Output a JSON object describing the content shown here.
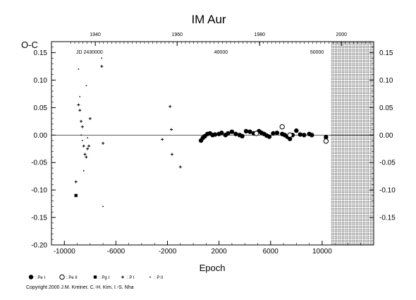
{
  "chart_data": {
    "type": "scatter",
    "title": "IM Aur",
    "xlabel": "Epoch",
    "ylabel": "O-C",
    "xlim": [
      -11000,
      14000
    ],
    "ylim": [
      -0.2,
      0.17
    ],
    "x_ticks": [
      -10000,
      -6000,
      -2000,
      2000,
      6000,
      10000
    ],
    "x_tick_labels": [
      "-10000",
      "-6000",
      "-2000",
      "2000",
      "6000",
      "10000"
    ],
    "y_ticks_left": [
      0.15,
      0.1,
      0.05,
      0.0,
      -0.05,
      -0.1,
      -0.15,
      -0.2
    ],
    "y_tick_labels_left": [
      "0.15",
      "0.10",
      "0.05",
      "0.00",
      "-0.05",
      "-0.10",
      "-0.15",
      "-0.20"
    ],
    "y_ticks_right": [
      0.15,
      0.1,
      0.05,
      0.0,
      -0.05,
      -0.1,
      -0.15
    ],
    "y_tick_labels_right": [
      "0.15",
      "0.10",
      "0.05",
      "0.00",
      "-0.05",
      "-0.10",
      "-0.15"
    ],
    "top_year_ticks": [
      {
        "label": "1940",
        "epoch": -7600
      },
      {
        "label": "1960",
        "epoch": -1250
      },
      {
        "label": "1980",
        "epoch": 5150
      },
      {
        "label": "2000",
        "epoch": 11500
      }
    ],
    "jd_label": "JD 2430000",
    "jd_ticks": [
      {
        "label": "40000",
        "epoch": 2150
      },
      {
        "label": "50000",
        "epoch": 9600
      }
    ],
    "future_hatch_from_epoch": 10700,
    "series": [
      {
        "name": ": Pe I",
        "marker": "filled-circle",
        "points": [
          [
            600,
            -0.01
          ],
          [
            750,
            -0.005
          ],
          [
            900,
            -0.002
          ],
          [
            1100,
            0.002
          ],
          [
            1300,
            0.003
          ],
          [
            1500,
            0.0
          ],
          [
            1700,
            0.001
          ],
          [
            2000,
            0.002
          ],
          [
            2200,
            0.004
          ],
          [
            2500,
            0.0
          ],
          [
            2700,
            0.003
          ],
          [
            3000,
            0.006
          ],
          [
            3300,
            0.002
          ],
          [
            3600,
            0.0
          ],
          [
            3800,
            -0.002
          ],
          [
            4100,
            0.007
          ],
          [
            4400,
            0.006
          ],
          [
            4700,
            0.003
          ],
          [
            5100,
            0.007
          ],
          [
            5300,
            0.004
          ],
          [
            5500,
            0.002
          ],
          [
            5700,
            -0.001
          ],
          [
            5900,
            -0.003
          ],
          [
            6200,
            0.003
          ],
          [
            6500,
            0.004
          ],
          [
            6900,
            0.002
          ],
          [
            7100,
            0.0
          ],
          [
            7300,
            -0.003
          ],
          [
            7500,
            -0.007
          ],
          [
            7700,
            0.0
          ],
          [
            8000,
            0.008
          ],
          [
            8300,
            0.001
          ],
          [
            8600,
            0.0
          ],
          [
            9000,
            0.002
          ],
          [
            9200,
            0.0
          ],
          [
            10300,
            -0.004
          ]
        ]
      },
      {
        "name": ": Pe II",
        "marker": "open-circle",
        "points": [
          [
            4900,
            0.003
          ],
          [
            6900,
            0.015
          ],
          [
            7500,
            0.0
          ],
          [
            10300,
            -0.011
          ]
        ]
      },
      {
        "name": ": Pg I",
        "marker": "filled-square",
        "points": [
          [
            -9100,
            -0.11
          ]
        ]
      },
      {
        "name": ": P I",
        "marker": "plus",
        "points": [
          [
            -9100,
            -0.085
          ],
          [
            -8900,
            0.055
          ],
          [
            -8800,
            0.045
          ],
          [
            -8700,
            0.025
          ],
          [
            -8600,
            0.015
          ],
          [
            -8500,
            -0.02
          ],
          [
            -8400,
            -0.035
          ],
          [
            -8300,
            -0.04
          ],
          [
            -8200,
            -0.025
          ],
          [
            -8100,
            -0.02
          ],
          [
            -8000,
            0.03
          ],
          [
            -7100,
            0.125
          ],
          [
            -7000,
            -0.015
          ],
          [
            -2400,
            -0.008
          ],
          [
            -1800,
            0.052
          ],
          [
            -1700,
            0.01
          ],
          [
            -1650,
            -0.035
          ],
          [
            -1000,
            -0.058
          ]
        ]
      },
      {
        "name": ": P II",
        "marker": "dot",
        "points": [
          [
            -8900,
            0.12
          ],
          [
            -8800,
            0.07
          ],
          [
            -8700,
            0.0
          ],
          [
            -8600,
            -0.01
          ],
          [
            -8500,
            -0.065
          ],
          [
            -8300,
            0.09
          ],
          [
            -8200,
            -0.005
          ],
          [
            -7100,
            0.14
          ],
          [
            -7000,
            -0.13
          ]
        ]
      }
    ]
  },
  "copyright": "Copyright 2000 J.M. Kreiner, C.-H. Kim, I.-S. Nha"
}
